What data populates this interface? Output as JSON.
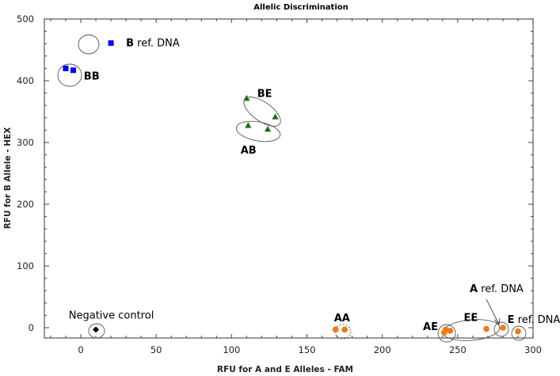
{
  "chart_data": {
    "type": "scatter",
    "title": "Allelic Discrimination",
    "xlabel": "RFU for A and E Alleles - FAM",
    "ylabel": "RFU for B Allele - HEX",
    "xlim": [
      -24,
      300
    ],
    "ylim": [
      -17,
      500
    ],
    "x_ticks": [
      0,
      50,
      100,
      150,
      200,
      250,
      300
    ],
    "y_ticks": [
      0,
      100,
      200,
      300,
      400,
      500
    ],
    "grid": false,
    "legend": "none",
    "series": [
      {
        "name": "Negative control",
        "marker": "diamond",
        "color": "#000000",
        "points": [
          [
            10,
            -3
          ]
        ]
      },
      {
        "name": "B ref. DNA",
        "marker": "square",
        "color": "#0000ff",
        "points": [
          [
            20,
            461
          ]
        ]
      },
      {
        "name": "BB",
        "marker": "square",
        "color": "#0000ff",
        "points": [
          [
            -10,
            420
          ],
          [
            -5,
            417
          ]
        ]
      },
      {
        "name": "BE",
        "marker": "triangle",
        "color": "#1a6b1a",
        "points": [
          [
            110,
            372
          ],
          [
            129,
            342
          ]
        ]
      },
      {
        "name": "AB",
        "marker": "triangle",
        "color": "#1a6b1a",
        "points": [
          [
            111,
            328
          ],
          [
            124,
            322
          ]
        ]
      },
      {
        "name": "AA",
        "marker": "circle",
        "color": "#f07a10",
        "points": [
          [
            169,
            -3
          ],
          [
            175,
            -3
          ]
        ]
      },
      {
        "name": "AE",
        "marker": "circle",
        "color": "#f07a10",
        "points": [
          [
            242,
            -3
          ],
          [
            241,
            -8
          ]
        ]
      },
      {
        "name": "EE",
        "marker": "circle",
        "color": "#f07a10",
        "points": [
          [
            245,
            -5
          ],
          [
            269,
            -2
          ]
        ]
      },
      {
        "name": "A ref. DNA",
        "marker": "circle",
        "color": "#f07a10",
        "points": [
          [
            280,
            0
          ]
        ]
      },
      {
        "name": "E ref. DNA",
        "marker": "circle",
        "color": "#f07a10",
        "points": [
          [
            290,
            -6
          ]
        ]
      }
    ],
    "annotations": [
      {
        "text_bold": "B",
        "text": " ref. DNA",
        "x": 30,
        "y": 456
      },
      {
        "text_bold": "BB",
        "text": "",
        "x": 2,
        "y": 402
      },
      {
        "text_bold": "BE",
        "text": "",
        "x": 117,
        "y": 374
      },
      {
        "text_bold": "AB",
        "text": "",
        "x": 106,
        "y": 282
      },
      {
        "text_bold": "",
        "text": "Negative control",
        "x": -8,
        "y": 15
      },
      {
        "text_bold": "AA",
        "text": "",
        "x": 168,
        "y": 10
      },
      {
        "text_bold": "AE",
        "text": "",
        "x": 227,
        "y": -4
      },
      {
        "text_bold": "EE",
        "text": "",
        "x": 254,
        "y": 11
      },
      {
        "text_bold": "A",
        "text": " ref. DNA",
        "x": 258,
        "y": 58
      },
      {
        "text_bold": "E",
        "text": " ref. DNA",
        "x": 283,
        "y": 8
      }
    ]
  }
}
